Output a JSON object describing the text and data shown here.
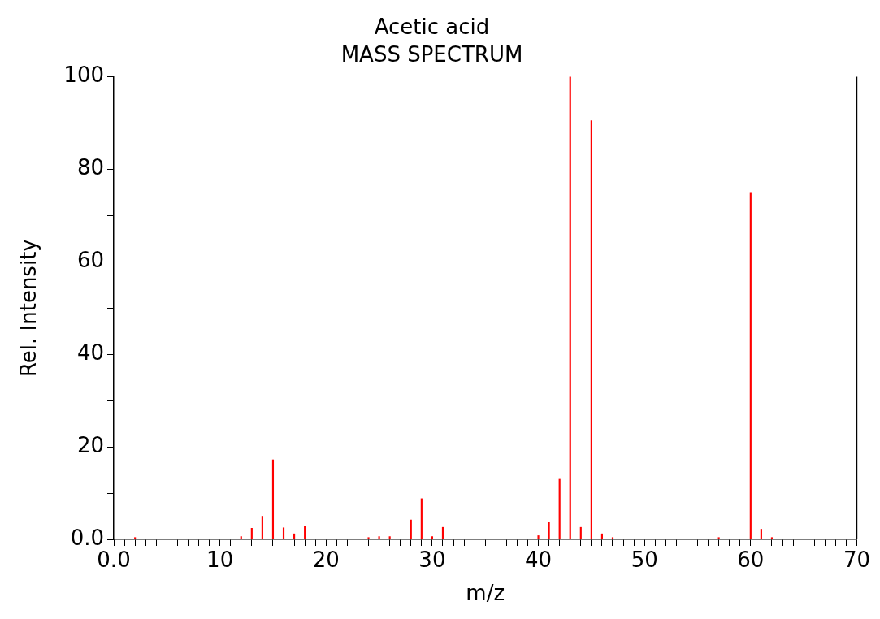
{
  "chart_data": {
    "type": "bar",
    "title": "Acetic acid",
    "subtitle": "MASS SPECTRUM",
    "xlabel": "m/z",
    "ylabel": "Rel. Intensity",
    "x": [
      2,
      12,
      13,
      14,
      15,
      16,
      17,
      18,
      24,
      25,
      26,
      28,
      29,
      30,
      31,
      40,
      41,
      42,
      43,
      44,
      45,
      46,
      47,
      57,
      60,
      61,
      62
    ],
    "values": [
      0.4,
      0.6,
      2.4,
      5.0,
      17.2,
      2.5,
      1.2,
      2.8,
      0.4,
      0.6,
      0.6,
      4.2,
      8.8,
      0.6,
      2.6,
      0.8,
      3.7,
      13.0,
      100,
      2.6,
      90.5,
      1.2,
      0.4,
      0.4,
      75,
      2.2,
      0.4
    ],
    "color": "#ff0000",
    "xlim": [
      0,
      70
    ],
    "xticks": [
      {
        "value": 0,
        "label": "0.0"
      },
      {
        "value": 1,
        "label": null
      },
      {
        "value": 2,
        "label": null
      },
      {
        "value": 3,
        "label": null
      },
      {
        "value": 4,
        "label": null
      },
      {
        "value": 5,
        "label": null
      },
      {
        "value": 6,
        "label": null
      },
      {
        "value": 7,
        "label": null
      },
      {
        "value": 8,
        "label": null
      },
      {
        "value": 9,
        "label": null
      },
      10,
      {
        "value": 11,
        "label": null
      },
      {
        "value": 12,
        "label": null
      },
      {
        "value": 13,
        "label": null
      },
      {
        "value": 14,
        "label": null
      },
      {
        "value": 15,
        "label": null
      },
      {
        "value": 16,
        "label": null
      },
      {
        "value": 17,
        "label": null
      },
      {
        "value": 18,
        "label": null
      },
      {
        "value": 19,
        "label": null
      },
      20,
      {
        "value": 21,
        "label": null
      },
      {
        "value": 22,
        "label": null
      },
      {
        "value": 23,
        "label": null
      },
      {
        "value": 24,
        "label": null
      },
      {
        "value": 25,
        "label": null
      },
      {
        "value": 26,
        "label": null
      },
      {
        "value": 27,
        "label": null
      },
      {
        "value": 28,
        "label": null
      },
      {
        "value": 29,
        "label": null
      },
      30,
      {
        "value": 31,
        "label": null
      },
      {
        "value": 32,
        "label": null
      },
      {
        "value": 33,
        "label": null
      },
      {
        "value": 34,
        "label": null
      },
      {
        "value": 35,
        "label": null
      },
      {
        "value": 36,
        "label": null
      },
      {
        "value": 37,
        "label": null
      },
      {
        "value": 38,
        "label": null
      },
      {
        "value": 39,
        "label": null
      },
      40,
      {
        "value": 41,
        "label": null
      },
      {
        "value": 42,
        "label": null
      },
      {
        "value": 43,
        "label": null
      },
      {
        "value": 44,
        "label": null
      },
      {
        "value": 45,
        "label": null
      },
      {
        "value": 46,
        "label": null
      },
      {
        "value": 47,
        "label": null
      },
      {
        "value": 48,
        "label": null
      },
      {
        "value": 49,
        "label": null
      },
      50,
      {
        "value": 51,
        "label": null
      },
      {
        "value": 52,
        "label": null
      },
      {
        "value": 53,
        "label": null
      },
      {
        "value": 54,
        "label": null
      },
      {
        "value": 55,
        "label": null
      },
      {
        "value": 56,
        "label": null
      },
      {
        "value": 57,
        "label": null
      },
      {
        "value": 58,
        "label": null
      },
      {
        "value": 59,
        "label": null
      },
      60,
      {
        "value": 61,
        "label": null
      },
      {
        "value": 62,
        "label": null
      },
      {
        "value": 63,
        "label": null
      },
      {
        "value": 64,
        "label": null
      },
      {
        "value": 65,
        "label": null
      },
      {
        "value": 66,
        "label": null
      },
      {
        "value": 67,
        "label": null
      },
      {
        "value": 68,
        "label": null
      },
      {
        "value": 69,
        "label": null
      },
      70
    ],
    "ylim": [
      0,
      100
    ],
    "yticks": [
      {
        "value": 0,
        "label": "0.0"
      },
      {
        "value": 10,
        "label": null
      },
      20,
      {
        "value": 30,
        "label": null
      },
      40,
      {
        "value": 50,
        "label": null
      },
      60,
      {
        "value": 70,
        "label": null
      },
      80,
      {
        "value": 90,
        "label": null
      },
      100
    ],
    "grid": false,
    "legend": false
  }
}
